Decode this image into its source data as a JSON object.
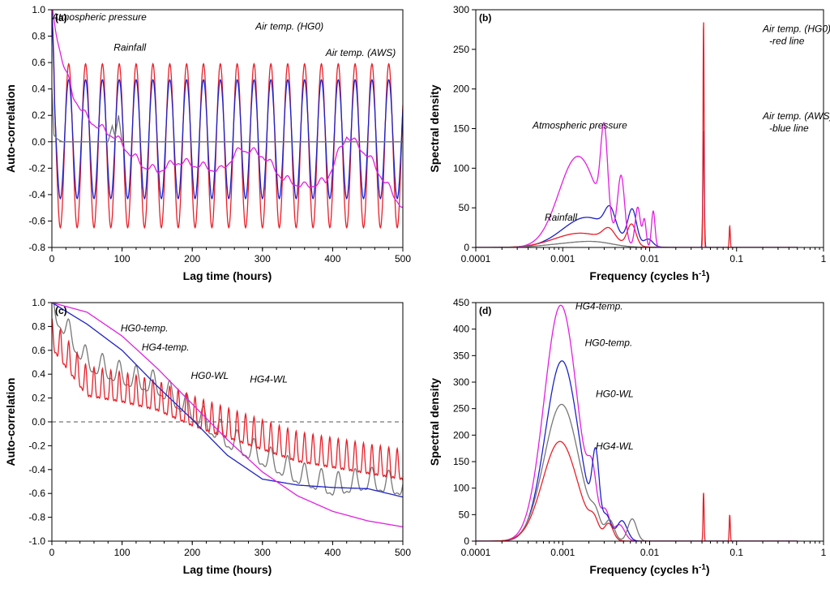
{
  "chart_data": [
    {
      "panel": "(a)",
      "type": "line",
      "xlabel": "Lag time (hours)",
      "ylabel": "Auto-correlation",
      "xlim": [
        0,
        500
      ],
      "ylim": [
        -0.8,
        1.0
      ],
      "xticks": [
        "0",
        "100",
        "200",
        "300",
        "400",
        "500"
      ],
      "yticks": [
        "-0.8",
        "-0.6",
        "-0.4",
        "-0.2",
        "0.0",
        "0.2",
        "0.4",
        "0.6",
        "0.8",
        "1.0"
      ],
      "zero_line": true,
      "series": [
        {
          "color": "#e8202a",
          "model": {
            "kind": "osc",
            "period": 24,
            "amp": 0.62,
            "decay": 0.0,
            "baseline": -0.03,
            "start": [
              1.0,
              0
            ]
          }
        },
        {
          "color": "#1e22c8",
          "model": {
            "kind": "osc",
            "period": 24,
            "amp": 0.45,
            "decay": 0.0,
            "baseline": 0.02,
            "start": [
              1.0,
              0
            ]
          }
        },
        {
          "color": "#e21fe0",
          "model": {
            "kind": "points",
            "x": [
              0,
              5,
              15,
              30,
              50,
              70,
              90,
              110,
              130,
              150,
              180,
              210,
              240,
              270,
              300,
              330,
              360,
              390,
              420,
              450,
              480,
              500
            ],
            "y": [
              1.0,
              0.85,
              0.62,
              0.35,
              0.18,
              0.1,
              0.04,
              -0.08,
              -0.18,
              -0.22,
              -0.15,
              -0.18,
              -0.22,
              -0.05,
              -0.1,
              -0.28,
              -0.34,
              -0.3,
              0.05,
              -0.1,
              -0.35,
              -0.5
            ],
            "ripple": 0.05,
            "period": 24
          }
        },
        {
          "color": "#777777",
          "model": {
            "kind": "points",
            "x": [
              0,
              3,
              8,
              15,
              80,
              86,
              90,
              95,
              100,
              500
            ],
            "y": [
              0.4,
              0.05,
              0.02,
              0.0,
              0.0,
              0.12,
              0.04,
              0.2,
              0.0,
              0.0
            ],
            "ripple": 0,
            "period": 24
          }
        }
      ],
      "annotations": [
        {
          "text": "Atmospheric pressure",
          "tx": 0.12,
          "ty": 0.92
        },
        {
          "text": "Rainfall",
          "tx": 88,
          "ty": 0.69
        },
        {
          "text": "Air temp. (HG0)",
          "tx": 290,
          "ty": 0.85
        },
        {
          "text": "Air temp. (AWS)",
          "tx": 390,
          "ty": 0.65
        }
      ]
    },
    {
      "panel": "(b)",
      "type": "line",
      "xscale": "log",
      "xlabel": "Frequency (cycles h",
      "xlabel_sup": "-1",
      "xlabel_end": ")",
      "ylabel": "Spectral density",
      "xlim": [
        0.0001,
        1
      ],
      "ylim": [
        0,
        300
      ],
      "xticks": [
        "0.0001",
        "0.001",
        "0.01",
        "0.1",
        "1"
      ],
      "yticks": [
        "0",
        "50",
        "100",
        "150",
        "200",
        "250",
        "300"
      ],
      "series": [
        {
          "color": "#1e22c8",
          "peaks": [
            [
              0.0019,
              38,
              0.28
            ],
            [
              0.0035,
              28,
              0.06
            ],
            [
              0.0063,
              42,
              0.05
            ],
            [
              0.0097,
              9,
              0.05
            ],
            [
              0.0417,
              148,
              0.008
            ]
          ]
        },
        {
          "color": "#e8202a",
          "peaks": [
            [
              0.0016,
              18,
              0.3
            ],
            [
              0.0034,
              15,
              0.07
            ],
            [
              0.0062,
              27,
              0.05
            ],
            [
              0.0417,
              287,
              0.006
            ],
            [
              0.0834,
              27,
              0.006
            ]
          ]
        },
        {
          "color": "#e21fe0",
          "peaks": [
            [
              0.0015,
              115,
              0.22
            ],
            [
              0.003,
              112,
              0.04
            ],
            [
              0.0047,
              82,
              0.04
            ],
            [
              0.0073,
              50,
              0.03
            ],
            [
              0.0087,
              34,
              0.02
            ],
            [
              0.011,
              46,
              0.02
            ]
          ]
        },
        {
          "color": "#777777",
          "peaks": [
            [
              0.0013,
              5,
              0.3
            ],
            [
              0.0025,
              4,
              0.2
            ]
          ]
        }
      ],
      "annotations": [
        {
          "text": "Air temp. (HG0)",
          "text2": "-red line",
          "tx": 0.2,
          "ty": 272
        },
        {
          "text": "Air temp. (AWS)",
          "text2": "-blue line",
          "tx": 0.2,
          "ty": 162
        },
        {
          "text": "Atmospheric pressure",
          "tx": 0.00045,
          "ty": 150
        },
        {
          "text": "Rainfall",
          "tx": 0.00062,
          "ty": 34
        }
      ]
    },
    {
      "panel": "(c)",
      "type": "line",
      "xlabel": "Lag time (hours)",
      "ylabel": "Auto-correlation",
      "xlim": [
        0,
        500
      ],
      "ylim": [
        -1.0,
        1.0
      ],
      "xticks": [
        "0",
        "100",
        "200",
        "300",
        "400",
        "500"
      ],
      "yticks": [
        "-1.0",
        "-0.8",
        "-0.6",
        "-0.4",
        "-0.2",
        "0.0",
        "0.2",
        "0.4",
        "0.6",
        "0.8",
        "1.0"
      ],
      "zero_line": true,
      "series": [
        {
          "color": "#777777",
          "model": {
            "kind": "points",
            "x": [
              0,
              50,
              100,
              150,
              200,
              250,
              300,
              350,
              400,
              450,
              500
            ],
            "y": [
              0.95,
              0.5,
              0.38,
              0.3,
              0.08,
              -0.15,
              -0.3,
              -0.45,
              -0.55,
              -0.5,
              -0.55
            ],
            "ripple": 0.18,
            "period": 24
          }
        },
        {
          "color": "#e8202a",
          "model": {
            "kind": "points",
            "x": [
              0,
              50,
              100,
              150,
              200,
              250,
              300,
              350,
              400,
              450,
              500
            ],
            "y": [
              0.7,
              0.3,
              0.25,
              0.18,
              0.05,
              -0.05,
              -0.15,
              -0.25,
              -0.3,
              -0.35,
              -0.4
            ],
            "ripple": 0.24,
            "period": 12
          }
        },
        {
          "color": "#1e22c8",
          "model": {
            "kind": "points",
            "x": [
              0,
              50,
              100,
              150,
              200,
              250,
              300,
              350,
              400,
              450,
              500
            ],
            "y": [
              1.0,
              0.82,
              0.6,
              0.3,
              0.02,
              -0.28,
              -0.48,
              -0.53,
              -0.55,
              -0.56,
              -0.63
            ],
            "ripple": 0,
            "period": 24
          }
        },
        {
          "color": "#e21fe0",
          "model": {
            "kind": "points",
            "x": [
              0,
              50,
              100,
              150,
              200,
              250,
              300,
              350,
              400,
              450,
              500
            ],
            "y": [
              1.0,
              0.92,
              0.72,
              0.45,
              0.15,
              -0.15,
              -0.42,
              -0.62,
              -0.75,
              -0.83,
              -0.88
            ],
            "ripple": 0,
            "period": 24
          }
        }
      ],
      "annotations": [
        {
          "text": "HG0-temp.",
          "tx": 98,
          "ty": 0.76
        },
        {
          "text": "HG4-temp.",
          "tx": 128,
          "ty": 0.6
        },
        {
          "text": "HG0-WL",
          "tx": 198,
          "ty": 0.36
        },
        {
          "text": "HG4-WL",
          "tx": 282,
          "ty": 0.33
        }
      ]
    },
    {
      "panel": "(d)",
      "type": "line",
      "xscale": "log",
      "xlabel": "Frequency (cycles h",
      "xlabel_sup": "-1",
      "xlabel_end": ")",
      "ylabel": "Spectral density",
      "xlim": [
        0.0001,
        1
      ],
      "ylim": [
        0,
        450
      ],
      "xticks": [
        "0.0001",
        "0.001",
        "0.01",
        "0.1",
        "1"
      ],
      "yticks": [
        "0",
        "50",
        "100",
        "150",
        "200",
        "250",
        "300",
        "350",
        "400",
        "450"
      ],
      "series": [
        {
          "color": "#e21fe0",
          "peaks": [
            [
              0.00095,
              445,
              0.19
            ],
            [
              0.0022,
              80,
              0.05
            ],
            [
              0.0031,
              48,
              0.05
            ],
            [
              0.0045,
              30,
              0.06
            ]
          ]
        },
        {
          "color": "#1e22c8",
          "peaks": [
            [
              0.00098,
              340,
              0.19
            ],
            [
              0.0024,
              132,
              0.04
            ],
            [
              0.0032,
              40,
              0.05
            ],
            [
              0.0048,
              38,
              0.06
            ]
          ]
        },
        {
          "color": "#777777",
          "peaks": [
            [
              0.00097,
              258,
              0.2
            ],
            [
              0.0024,
              28,
              0.05
            ],
            [
              0.0035,
              35,
              0.05
            ],
            [
              0.0063,
              42,
              0.05
            ]
          ]
        },
        {
          "color": "#e8202a",
          "peaks": [
            [
              0.00093,
              188,
              0.2
            ],
            [
              0.0023,
              24,
              0.05
            ],
            [
              0.0034,
              30,
              0.05
            ],
            [
              0.0417,
              92,
              0.006
            ],
            [
              0.0834,
              50,
              0.006
            ]
          ]
        }
      ],
      "annotations": [
        {
          "text": "HG4-temp.",
          "tx": 0.0014,
          "ty": 437
        },
        {
          "text": "HG0-temp.",
          "tx": 0.0018,
          "ty": 368
        },
        {
          "text": "HG0-WL",
          "tx": 0.0024,
          "ty": 272
        },
        {
          "text": "HG4-WL",
          "tx": 0.0024,
          "ty": 173
        }
      ]
    }
  ]
}
